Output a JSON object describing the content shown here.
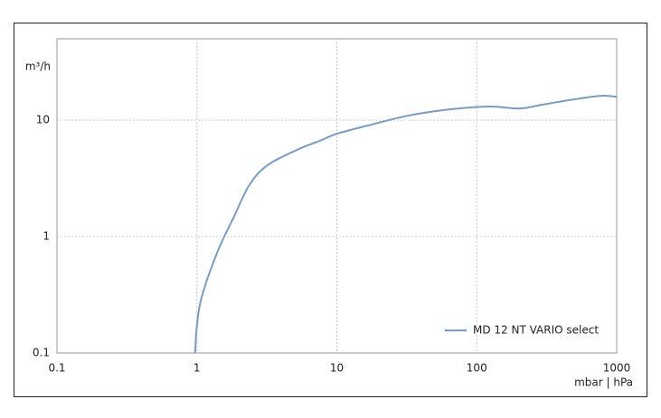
{
  "chart_data": {
    "type": "line",
    "y_label": "m³/h",
    "x_label": "mbar | hPa",
    "x": [
      0.97,
      1.0,
      1.08,
      1.41,
      1.84,
      2.37,
      3.19,
      5.35,
      7.8,
      10,
      17.6,
      31.8,
      57.6,
      121,
      203,
      295,
      534,
      777,
      1000
    ],
    "series": [
      {
        "name": "MD 12 NT VARIO select",
        "color": "#7a9cc0",
        "values": [
          0.1,
          0.17,
          0.3,
          0.75,
          1.48,
          2.77,
          4.1,
          5.65,
          6.75,
          7.65,
          9.15,
          10.9,
          12.2,
          13.1,
          12.6,
          13.6,
          15.3,
          16.2,
          15.9
        ]
      }
    ],
    "xlim": [
      0.1,
      1000
    ],
    "ylim": [
      0.1,
      50
    ],
    "xticks": [
      0.1,
      1,
      10,
      100,
      1000
    ],
    "yticks": [
      0.1,
      1,
      10
    ],
    "log_x": true,
    "log_y": true,
    "grid": true,
    "legend": "lower right"
  }
}
